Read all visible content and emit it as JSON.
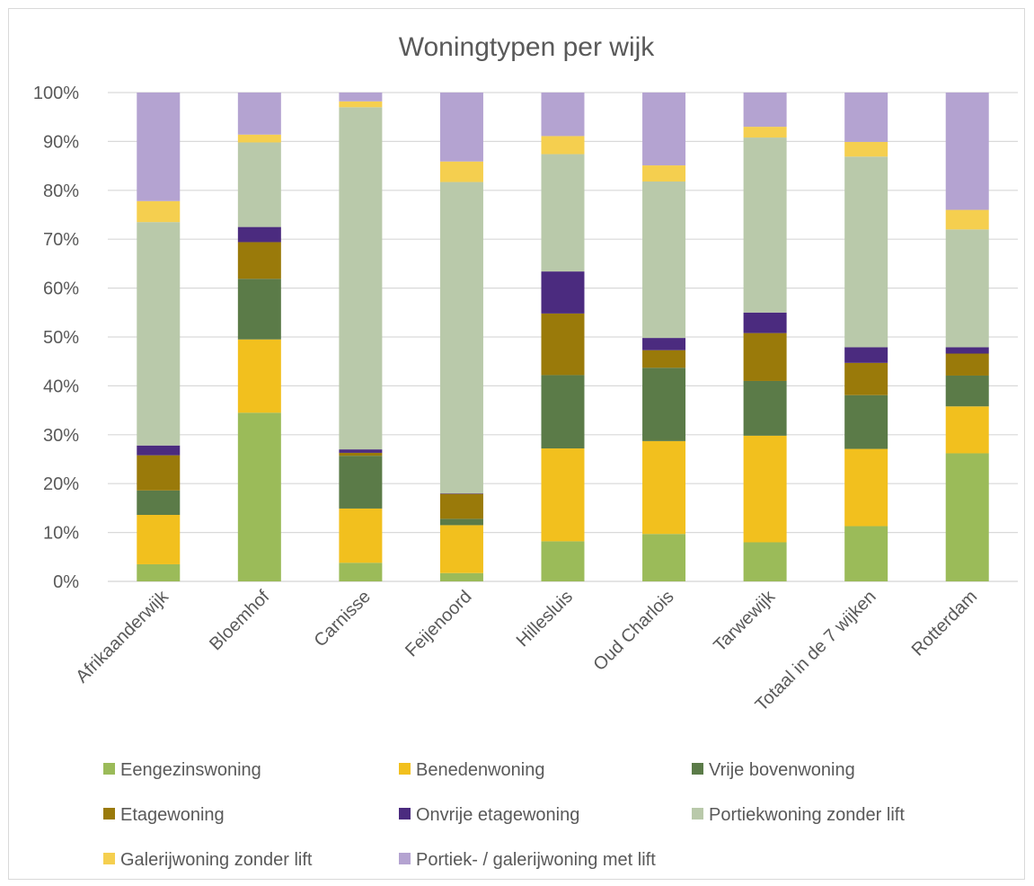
{
  "chart_data": {
    "type": "bar",
    "stacked": true,
    "percent_stacked": true,
    "title": "Woningtypen per wijk",
    "xlabel": "",
    "ylabel": "",
    "ylim": [
      0,
      100
    ],
    "y_ticks": [
      0,
      10,
      20,
      30,
      40,
      50,
      60,
      70,
      80,
      90,
      100
    ],
    "y_tick_suffix": "%",
    "grid": true,
    "legend_position": "bottom",
    "categories": [
      "Afrikaanderwijk",
      "Bloemhof",
      "Carnisse",
      "Feijenoord",
      "Hillesluis",
      "Oud Charlois",
      "Tarwewijk",
      "Totaal in de 7 wijken",
      "Rotterdam"
    ],
    "series": [
      {
        "name": "Eengezinswoning",
        "color": "#9bbb59",
        "values": [
          3.5,
          34.5,
          3.8,
          1.7,
          8.2,
          9.7,
          8.0,
          11.3,
          26.2
        ]
      },
      {
        "name": "Benedenwoning",
        "color": "#f2c01e",
        "values": [
          10.1,
          15.0,
          11.1,
          9.8,
          19.0,
          19.0,
          21.8,
          15.8,
          9.6
        ]
      },
      {
        "name": "Vrije bovenwoning",
        "color": "#5b7b48",
        "values": [
          5.0,
          12.4,
          10.8,
          1.3,
          15.0,
          15.0,
          11.2,
          11.0,
          6.3
        ]
      },
      {
        "name": "Etagewoning",
        "color": "#9a7a0a",
        "values": [
          7.2,
          7.5,
          0.6,
          5.1,
          12.6,
          3.6,
          9.8,
          6.6,
          4.5
        ]
      },
      {
        "name": "Onvrije etagewoning",
        "color": "#4b2b7f",
        "values": [
          2.0,
          3.1,
          0.7,
          0.1,
          8.6,
          2.5,
          4.2,
          3.2,
          1.3
        ]
      },
      {
        "name": "Portiekwoning zonder lift",
        "color": "#b9c9aa",
        "values": [
          45.7,
          17.3,
          70.0,
          63.7,
          24.0,
          32.0,
          35.8,
          39.0,
          24.1
        ]
      },
      {
        "name": "Galerijwoning zonder lift",
        "color": "#f5cf4f",
        "values": [
          4.3,
          1.6,
          1.2,
          4.2,
          3.7,
          3.3,
          2.2,
          3.0,
          4.0
        ]
      },
      {
        "name": "Portiek- / galerijwoning met lift",
        "color": "#b4a3d1",
        "values": [
          22.2,
          8.6,
          1.8,
          14.1,
          8.9,
          14.9,
          7.0,
          10.1,
          24.0
        ]
      }
    ]
  }
}
